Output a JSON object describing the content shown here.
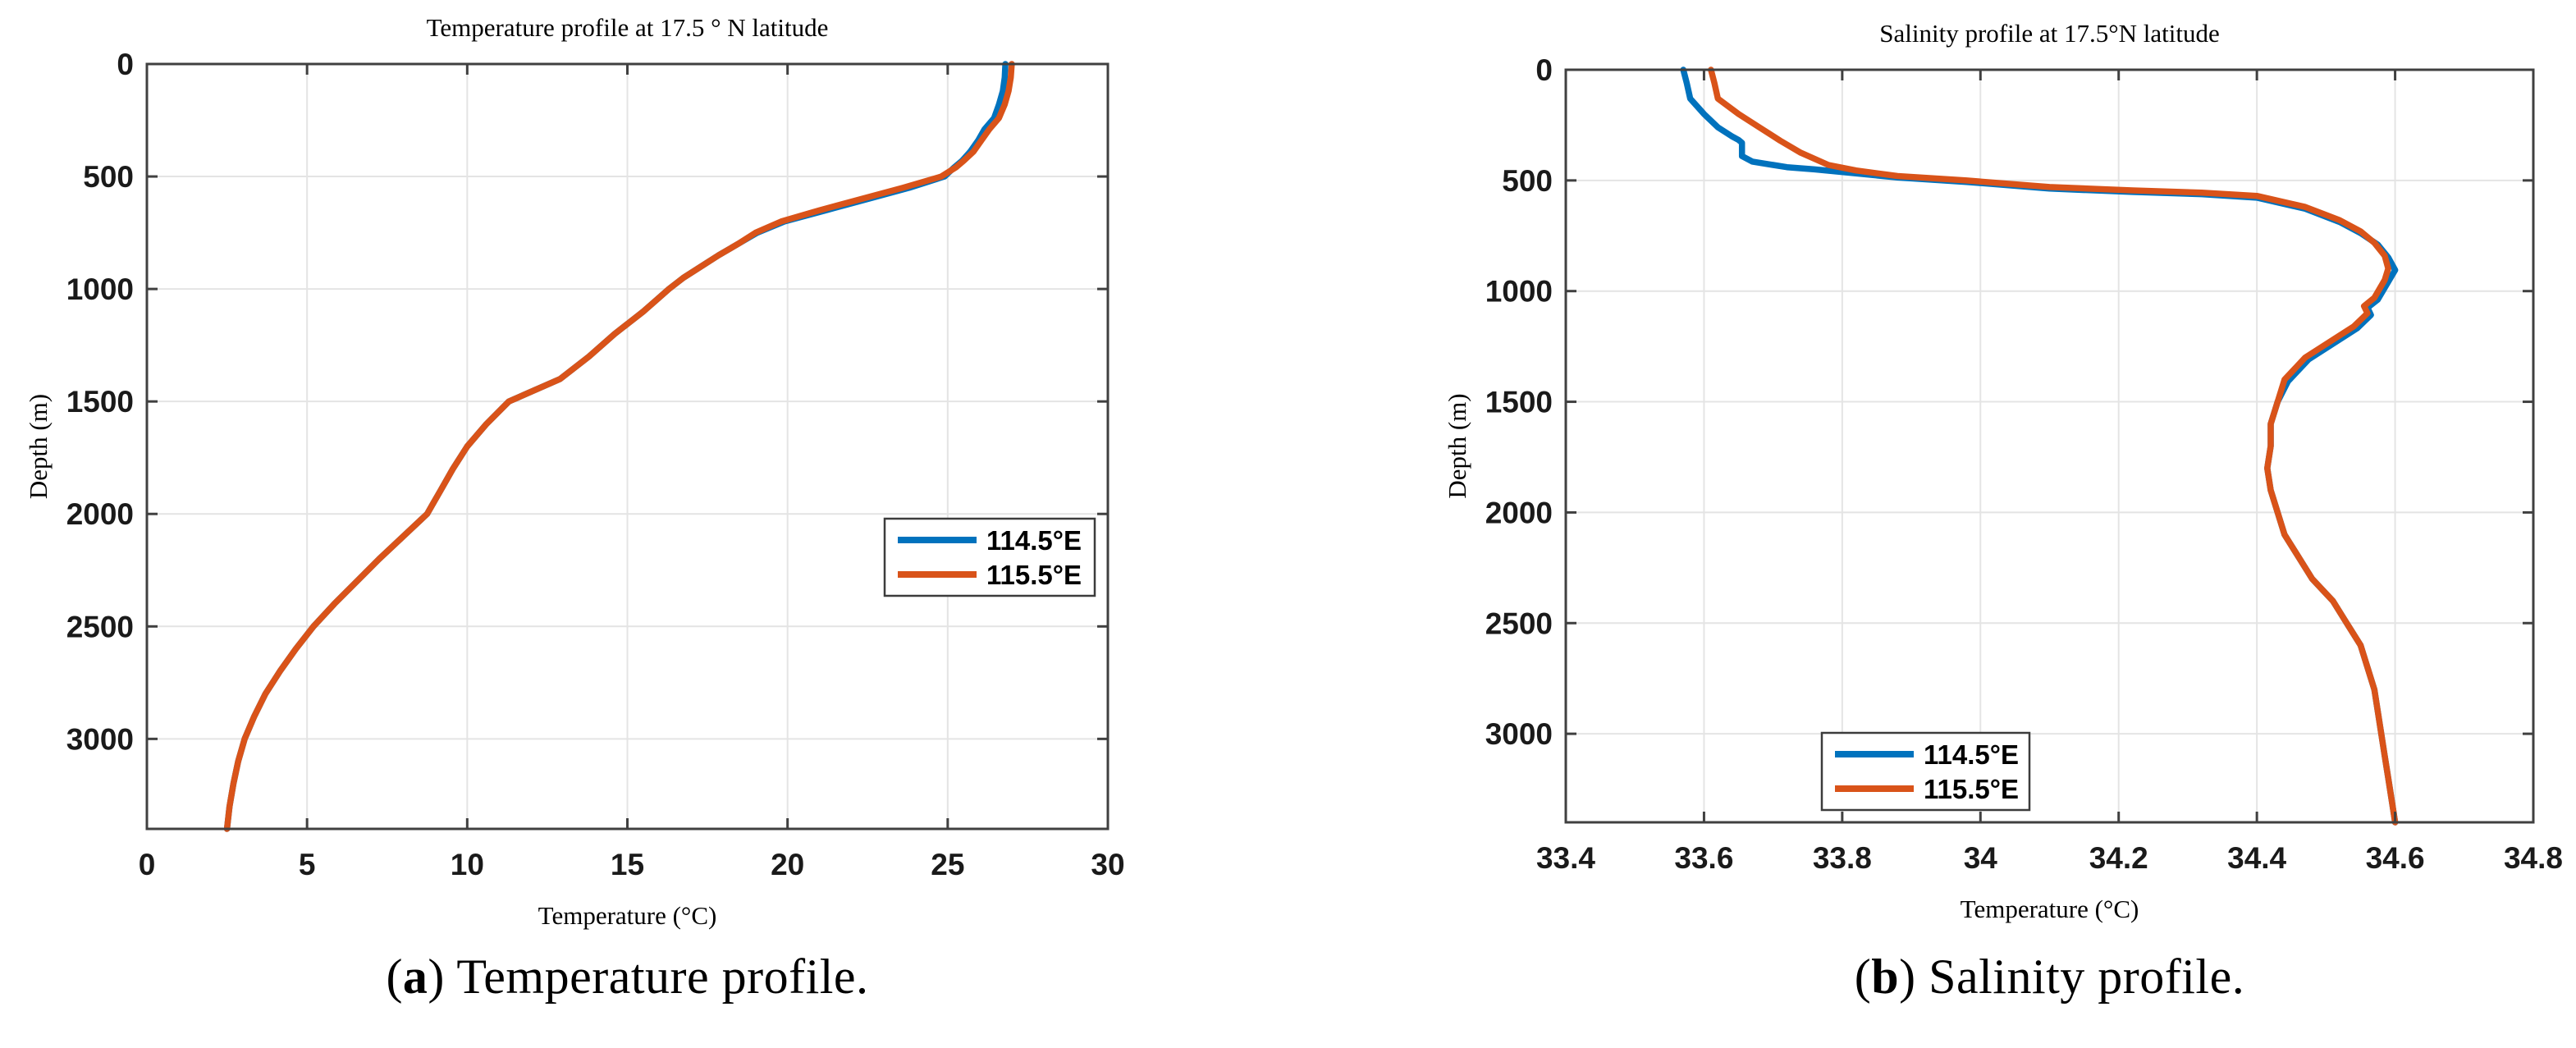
{
  "figure": {
    "captions": [
      {
        "prefix": "(",
        "letter": "a",
        "suffix": ") ",
        "text": "Temperature profile."
      },
      {
        "prefix": "(",
        "letter": "b",
        "suffix": ") ",
        "text": "Salinity profile."
      }
    ]
  },
  "colors": {
    "series_blue": "#0072BD",
    "series_orange": "#D95319",
    "grid": "#E4E4E4",
    "axis": "#404040",
    "tick_label": "#1A1A1A",
    "text": "#000000",
    "legend_border": "#3C3C3C",
    "background": "#FFFFFF"
  },
  "chart_data": [
    {
      "type": "line",
      "title": "Temperature profile at 17.5 ° N latitude",
      "xlabel": "Temperature (°C)",
      "ylabel": "Depth (m)",
      "xlim": [
        0,
        30
      ],
      "ylim": [
        0,
        3400
      ],
      "y_inverted": true,
      "grid": true,
      "xticks": [
        0,
        5,
        10,
        15,
        20,
        25,
        30
      ],
      "xtick_labels": [
        "0",
        "5",
        "10",
        "15",
        "20",
        "25",
        "30"
      ],
      "yticks": [
        0,
        500,
        1000,
        1500,
        2000,
        2500,
        3000
      ],
      "ytick_labels": [
        "0",
        "500",
        "1000",
        "1500",
        "2000",
        "2500",
        "3000"
      ],
      "legend": {
        "position": "mid-right",
        "entries": [
          "114.5°E",
          "115.5°E"
        ]
      },
      "series": [
        {
          "name": "114.5°E",
          "color": "#0072BD",
          "points": [
            [
              26.8,
              0
            ],
            [
              26.78,
              60
            ],
            [
              26.72,
              120
            ],
            [
              26.6,
              180
            ],
            [
              26.45,
              240
            ],
            [
              26.15,
              290
            ],
            [
              25.95,
              340
            ],
            [
              25.7,
              390
            ],
            [
              25.45,
              430
            ],
            [
              25.2,
              460
            ],
            [
              24.9,
              500
            ],
            [
              23.8,
              550
            ],
            [
              22.5,
              600
            ],
            [
              21.2,
              650
            ],
            [
              19.9,
              700
            ],
            [
              19.05,
              750
            ],
            [
              18.45,
              800
            ],
            [
              17.85,
              850
            ],
            [
              17.3,
              900
            ],
            [
              16.75,
              950
            ],
            [
              16.3,
              1000
            ],
            [
              15.9,
              1050
            ],
            [
              15.5,
              1100
            ],
            [
              15.05,
              1150
            ],
            [
              14.6,
              1200
            ],
            [
              13.8,
              1300
            ],
            [
              12.9,
              1400
            ],
            [
              11.3,
              1500
            ],
            [
              10.6,
              1600
            ],
            [
              10.0,
              1700
            ],
            [
              9.55,
              1800
            ],
            [
              9.15,
              1900
            ],
            [
              8.95,
              1950
            ],
            [
              8.75,
              2000
            ],
            [
              8.0,
              2100
            ],
            [
              7.25,
              2200
            ],
            [
              6.55,
              2300
            ],
            [
              5.85,
              2400
            ],
            [
              5.2,
              2500
            ],
            [
              4.65,
              2600
            ],
            [
              4.15,
              2700
            ],
            [
              3.7,
              2800
            ],
            [
              3.35,
              2900
            ],
            [
              3.05,
              3000
            ],
            [
              2.85,
              3100
            ],
            [
              2.7,
              3200
            ],
            [
              2.58,
              3300
            ],
            [
              2.5,
              3400
            ]
          ]
        },
        {
          "name": "115.5°E",
          "color": "#D95319",
          "points": [
            [
              27.0,
              0
            ],
            [
              26.97,
              60
            ],
            [
              26.9,
              120
            ],
            [
              26.78,
              180
            ],
            [
              26.6,
              240
            ],
            [
              26.3,
              290
            ],
            [
              26.05,
              340
            ],
            [
              25.8,
              390
            ],
            [
              25.5,
              430
            ],
            [
              25.25,
              460
            ],
            [
              24.8,
              500
            ],
            [
              23.6,
              550
            ],
            [
              22.3,
              600
            ],
            [
              21.0,
              650
            ],
            [
              19.8,
              700
            ],
            [
              19.0,
              750
            ],
            [
              18.45,
              800
            ],
            [
              17.85,
              850
            ],
            [
              17.3,
              900
            ],
            [
              16.75,
              950
            ],
            [
              16.3,
              1000
            ],
            [
              15.9,
              1050
            ],
            [
              15.5,
              1100
            ],
            [
              15.05,
              1150
            ],
            [
              14.6,
              1200
            ],
            [
              13.8,
              1300
            ],
            [
              12.9,
              1400
            ],
            [
              11.3,
              1500
            ],
            [
              10.6,
              1600
            ],
            [
              10.0,
              1700
            ],
            [
              9.55,
              1800
            ],
            [
              9.15,
              1900
            ],
            [
              8.95,
              1950
            ],
            [
              8.75,
              2000
            ],
            [
              8.0,
              2100
            ],
            [
              7.25,
              2200
            ],
            [
              6.55,
              2300
            ],
            [
              5.85,
              2400
            ],
            [
              5.2,
              2500
            ],
            [
              4.65,
              2600
            ],
            [
              4.15,
              2700
            ],
            [
              3.7,
              2800
            ],
            [
              3.35,
              2900
            ],
            [
              3.05,
              3000
            ],
            [
              2.85,
              3100
            ],
            [
              2.7,
              3200
            ],
            [
              2.58,
              3300
            ],
            [
              2.5,
              3400
            ]
          ]
        }
      ]
    },
    {
      "type": "line",
      "title": "Salinity profile at 17.5°N latitude",
      "xlabel": "Temperature (°C)",
      "ylabel": "Depth (m)",
      "xlim": [
        33.4,
        34.8
      ],
      "ylim": [
        0,
        3400
      ],
      "y_inverted": true,
      "grid": true,
      "xticks": [
        33.4,
        33.6,
        33.8,
        34.0,
        34.2,
        34.4,
        34.6,
        34.8
      ],
      "xtick_labels": [
        "33.4",
        "33.6",
        "33.8",
        "34",
        "34.2",
        "34.4",
        "34.6",
        "34.8"
      ],
      "yticks": [
        0,
        500,
        1000,
        1500,
        2000,
        2500,
        3000
      ],
      "ytick_labels": [
        "0",
        "500",
        "1000",
        "1500",
        "2000",
        "2500",
        "3000"
      ],
      "legend": {
        "position": "bottom-left",
        "entries": [
          "114.5°E",
          "115.5°E"
        ]
      },
      "series": [
        {
          "name": "114.5°E",
          "color": "#0072BD",
          "points": [
            [
              33.57,
              0
            ],
            [
              33.575,
              60
            ],
            [
              33.58,
              130
            ],
            [
              33.6,
              200
            ],
            [
              33.62,
              260
            ],
            [
              33.64,
              300
            ],
            [
              33.65,
              317
            ],
            [
              33.655,
              330
            ],
            [
              33.655,
              390
            ],
            [
              33.67,
              415
            ],
            [
              33.7,
              430
            ],
            [
              33.72,
              440
            ],
            [
              33.76,
              450
            ],
            [
              33.8,
              462
            ],
            [
              33.88,
              487
            ],
            [
              33.98,
              507
            ],
            [
              34.1,
              537
            ],
            [
              34.22,
              552
            ],
            [
              34.32,
              562
            ],
            [
              34.4,
              578
            ],
            [
              34.47,
              628
            ],
            [
              34.52,
              688
            ],
            [
              34.55,
              738
            ],
            [
              34.575,
              790
            ],
            [
              34.59,
              848
            ],
            [
              34.6,
              905
            ],
            [
              34.59,
              958
            ],
            [
              34.575,
              1038
            ],
            [
              34.56,
              1075
            ],
            [
              34.565,
              1108
            ],
            [
              34.545,
              1168
            ],
            [
              34.515,
              1228
            ],
            [
              34.475,
              1308
            ],
            [
              34.445,
              1408
            ],
            [
              34.43,
              1500
            ],
            [
              34.42,
              1600
            ],
            [
              34.42,
              1700
            ],
            [
              34.415,
              1800
            ],
            [
              34.42,
              1900
            ],
            [
              34.43,
              2000
            ],
            [
              34.44,
              2100
            ],
            [
              34.46,
              2200
            ],
            [
              34.48,
              2300
            ],
            [
              34.51,
              2400
            ],
            [
              34.53,
              2500
            ],
            [
              34.55,
              2600
            ],
            [
              34.56,
              2700
            ],
            [
              34.57,
              2800
            ],
            [
              34.575,
              2900
            ],
            [
              34.58,
              3000
            ],
            [
              34.585,
              3100
            ],
            [
              34.59,
              3200
            ],
            [
              34.595,
              3300
            ],
            [
              34.6,
              3400
            ]
          ]
        },
        {
          "name": "115.5°E",
          "color": "#D95319",
          "points": [
            [
              33.61,
              0
            ],
            [
              33.615,
              60
            ],
            [
              33.62,
              130
            ],
            [
              33.65,
              200
            ],
            [
              33.68,
              260
            ],
            [
              33.71,
              320
            ],
            [
              33.74,
              375
            ],
            [
              33.78,
              430
            ],
            [
              33.82,
              455
            ],
            [
              33.88,
              480
            ],
            [
              33.98,
              500
            ],
            [
              34.1,
              530
            ],
            [
              34.22,
              545
            ],
            [
              34.32,
              555
            ],
            [
              34.4,
              570
            ],
            [
              34.47,
              620
            ],
            [
              34.52,
              680
            ],
            [
              34.55,
              730
            ],
            [
              34.57,
              782
            ],
            [
              34.585,
              840
            ],
            [
              34.59,
              898
            ],
            [
              34.585,
              950
            ],
            [
              34.57,
              1030
            ],
            [
              34.555,
              1068
            ],
            [
              34.56,
              1100
            ],
            [
              34.54,
              1160
            ],
            [
              34.51,
              1220
            ],
            [
              34.47,
              1300
            ],
            [
              34.44,
              1400
            ],
            [
              34.43,
              1500
            ],
            [
              34.42,
              1600
            ],
            [
              34.42,
              1700
            ],
            [
              34.415,
              1800
            ],
            [
              34.42,
              1900
            ],
            [
              34.43,
              2000
            ],
            [
              34.44,
              2100
            ],
            [
              34.46,
              2200
            ],
            [
              34.48,
              2300
            ],
            [
              34.51,
              2400
            ],
            [
              34.53,
              2500
            ],
            [
              34.55,
              2600
            ],
            [
              34.56,
              2700
            ],
            [
              34.57,
              2800
            ],
            [
              34.575,
              2900
            ],
            [
              34.58,
              3000
            ],
            [
              34.585,
              3100
            ],
            [
              34.59,
              3200
            ],
            [
              34.595,
              3300
            ],
            [
              34.6,
              3400
            ]
          ]
        }
      ]
    }
  ]
}
